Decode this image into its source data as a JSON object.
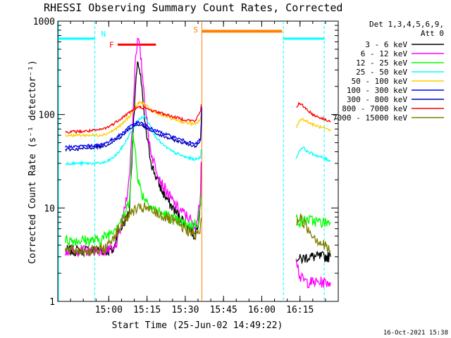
{
  "chart_data": {
    "type": "line",
    "title": "RHESSI Observing Summary Count Rates, Corrected",
    "xlabel": "Start Time (25-Jun-02 14:49:22)",
    "ylabel": "Corrected Count Rate (s⁻¹ detector⁻¹)",
    "yscale": "log",
    "ylim": [
      1,
      1000
    ],
    "xlim_minutes": [
      -10,
      100
    ],
    "x_ticks": [
      {
        "label": "15:00",
        "t": 10
      },
      {
        "label": "15:15",
        "t": 25
      },
      {
        "label": "15:30",
        "t": 40
      },
      {
        "label": "15:45",
        "t": 55
      },
      {
        "label": "16:00",
        "t": 70
      },
      {
        "label": "16:15",
        "t": 85
      }
    ],
    "y_ticks": [
      {
        "label": "1",
        "v": 1
      },
      {
        "label": "10",
        "v": 10
      },
      {
        "label": "100",
        "v": 100
      },
      {
        "label": "1000",
        "v": 1000
      }
    ],
    "legend_header": [
      "Det 1,3,4,5,6,9,",
      "Att 0"
    ],
    "series": [
      {
        "name": "3 - 6 keV",
        "color": "#000000",
        "points": [
          [
            -7,
            3.5
          ],
          [
            6,
            3.5
          ],
          [
            9,
            3.5
          ],
          [
            12,
            3.5
          ],
          [
            13,
            5
          ],
          [
            16,
            7
          ],
          [
            18,
            9
          ],
          [
            19.5,
            60
          ],
          [
            20.5,
            200
          ],
          [
            21.5,
            380
          ],
          [
            22.5,
            250
          ],
          [
            24,
            90
          ],
          [
            25.5,
            45
          ],
          [
            27,
            28
          ],
          [
            29,
            20
          ],
          [
            31,
            15
          ],
          [
            34,
            11
          ],
          [
            37,
            8.5
          ],
          [
            40,
            7
          ],
          [
            42,
            6
          ],
          [
            43.5,
            5
          ],
          [
            45,
            7
          ],
          [
            46,
            12
          ],
          [
            46.5,
            55
          ],
          [
            83.5,
            3
          ],
          [
            85,
            2.8
          ],
          [
            88,
            3
          ],
          [
            93,
            3
          ],
          [
            97,
            3
          ]
        ]
      },
      {
        "name": "6 - 12 keV",
        "color": "#ff00ff",
        "points": [
          [
            -7,
            3.5
          ],
          [
            6,
            3.5
          ],
          [
            9,
            3.5
          ],
          [
            12,
            3.5
          ],
          [
            14,
            5
          ],
          [
            16,
            9
          ],
          [
            18,
            20
          ],
          [
            19.5,
            100
          ],
          [
            20.5,
            450
          ],
          [
            21.5,
            650
          ],
          [
            22.5,
            420
          ],
          [
            24,
            160
          ],
          [
            25.5,
            60
          ],
          [
            27,
            35
          ],
          [
            29,
            25
          ],
          [
            31,
            18
          ],
          [
            34,
            13
          ],
          [
            37,
            10
          ],
          [
            40,
            8.5
          ],
          [
            42,
            7.5
          ],
          [
            43.5,
            6
          ],
          [
            45,
            8
          ],
          [
            46,
            15
          ],
          [
            46.5,
            85
          ],
          [
            83.5,
            3
          ],
          [
            85,
            1.8
          ],
          [
            88,
            1.6
          ],
          [
            93,
            1.6
          ],
          [
            97,
            1.6
          ]
        ]
      },
      {
        "name": "12 - 25 keV",
        "color": "#00ff00",
        "points": [
          [
            -7,
            4.5
          ],
          [
            6,
            4.5
          ],
          [
            9,
            5
          ],
          [
            12,
            6
          ],
          [
            14,
            7
          ],
          [
            16,
            8
          ],
          [
            18,
            12
          ],
          [
            19.5,
            60
          ],
          [
            20.5,
            40
          ],
          [
            21.5,
            20
          ],
          [
            23,
            14
          ],
          [
            25,
            12
          ],
          [
            27,
            10
          ],
          [
            30,
            9
          ],
          [
            34,
            8
          ],
          [
            38,
            7
          ],
          [
            42,
            6.5
          ],
          [
            45,
            7
          ],
          [
            46.5,
            14
          ],
          [
            83.5,
            8
          ],
          [
            85,
            7
          ],
          [
            88,
            7.5
          ],
          [
            93,
            7
          ],
          [
            97,
            7
          ]
        ]
      },
      {
        "name": "25 - 50 keV",
        "color": "#00ffff",
        "points": [
          [
            -7,
            30
          ],
          [
            0,
            30
          ],
          [
            6,
            30
          ],
          [
            9,
            31
          ],
          [
            12,
            35
          ],
          [
            14,
            40
          ],
          [
            16,
            48
          ],
          [
            18,
            60
          ],
          [
            20,
            75
          ],
          [
            22,
            90
          ],
          [
            24,
            95
          ],
          [
            26,
            80
          ],
          [
            28,
            60
          ],
          [
            31,
            48
          ],
          [
            35,
            40
          ],
          [
            40,
            35
          ],
          [
            44,
            33
          ],
          [
            46,
            35
          ],
          [
            46.5,
            55
          ],
          [
            83.5,
            33
          ],
          [
            84.5,
            40
          ],
          [
            86,
            45
          ],
          [
            88,
            40
          ],
          [
            92,
            36
          ],
          [
            97,
            32
          ]
        ]
      },
      {
        "name": "50 - 100 keV",
        "color": "#ffcc00",
        "points": [
          [
            -7,
            60
          ],
          [
            0,
            60
          ],
          [
            6,
            60
          ],
          [
            9,
            62
          ],
          [
            12,
            68
          ],
          [
            15,
            78
          ],
          [
            18,
            95
          ],
          [
            20,
            115
          ],
          [
            22,
            135
          ],
          [
            24,
            130
          ],
          [
            26,
            115
          ],
          [
            30,
            100
          ],
          [
            35,
            90
          ],
          [
            40,
            82
          ],
          [
            44,
            78
          ],
          [
            46,
            90
          ],
          [
            46.5,
            120
          ],
          [
            83.5,
            70
          ],
          [
            84.5,
            85
          ],
          [
            86,
            90
          ],
          [
            90,
            78
          ],
          [
            97,
            67
          ]
        ]
      },
      {
        "name": "100 - 300 keV",
        "color": "#0000ff",
        "points": [
          [
            -7,
            45
          ],
          [
            0,
            46
          ],
          [
            6,
            47
          ],
          [
            9,
            50
          ],
          [
            12,
            55
          ],
          [
            15,
            62
          ],
          [
            18,
            75
          ],
          [
            20,
            80
          ],
          [
            22,
            82
          ],
          [
            24,
            78
          ],
          [
            26,
            72
          ],
          [
            30,
            65
          ],
          [
            35,
            58
          ],
          [
            40,
            52
          ],
          [
            44,
            48
          ],
          [
            46,
            55
          ],
          [
            46.5,
            120
          ]
        ]
      },
      {
        "name": "300 - 800 keV",
        "color": "#0000aa",
        "points": [
          [
            -7,
            42
          ],
          [
            0,
            43
          ],
          [
            6,
            45
          ],
          [
            9,
            47
          ],
          [
            12,
            52
          ],
          [
            15,
            58
          ],
          [
            18,
            70
          ],
          [
            20,
            76
          ],
          [
            22,
            78
          ],
          [
            24,
            74
          ],
          [
            26,
            68
          ],
          [
            30,
            60
          ],
          [
            35,
            54
          ],
          [
            40,
            49
          ],
          [
            44,
            46
          ],
          [
            46,
            52
          ],
          [
            46.5,
            110
          ]
        ]
      },
      {
        "name": "800 - 7000 keV",
        "color": "#ff0000",
        "points": [
          [
            -7,
            65
          ],
          [
            0,
            66
          ],
          [
            6,
            68
          ],
          [
            9,
            72
          ],
          [
            12,
            80
          ],
          [
            15,
            92
          ],
          [
            18,
            105
          ],
          [
            20,
            115
          ],
          [
            22,
            120
          ],
          [
            24,
            118
          ],
          [
            26,
            112
          ],
          [
            30,
            105
          ],
          [
            35,
            95
          ],
          [
            40,
            88
          ],
          [
            44,
            85
          ],
          [
            46,
            110
          ],
          [
            46.5,
            145
          ],
          [
            83.5,
            120
          ],
          [
            84.5,
            130
          ],
          [
            86,
            125
          ],
          [
            90,
            100
          ],
          [
            94,
            90
          ],
          [
            97,
            85
          ]
        ]
      },
      {
        "name": "7000 - 15000 keV",
        "color": "#808000",
        "points": [
          [
            -7,
            3.5
          ],
          [
            6,
            3.5
          ],
          [
            9,
            3.8
          ],
          [
            12,
            5
          ],
          [
            14,
            6
          ],
          [
            17,
            8
          ],
          [
            20,
            9.5
          ],
          [
            24,
            10
          ],
          [
            28,
            9
          ],
          [
            32,
            8
          ],
          [
            36,
            7
          ],
          [
            40,
            6
          ],
          [
            44,
            5
          ],
          [
            46,
            6
          ],
          [
            46.5,
            10
          ],
          [
            83.5,
            7
          ],
          [
            85,
            8
          ],
          [
            88,
            6
          ],
          [
            92,
            4.5
          ],
          [
            97,
            3.5
          ]
        ]
      }
    ],
    "flags": {
      "attenuator_level": 650,
      "flare_label": "F",
      "flare_span_minutes": [
        13.5,
        28.5
      ],
      "flare_level": 560,
      "saa_label": "S",
      "saa_span_minutes": [
        46.5,
        78
      ],
      "saa_level": 780,
      "night_label": "N",
      "night_label_minute": 7,
      "night_boundaries_minutes": [
        4.5,
        78.5,
        94.5
      ],
      "data_gap_minutes": [
        46.5,
        83.5
      ]
    },
    "footer_stamp": "16-Oct-2021 15:38"
  }
}
